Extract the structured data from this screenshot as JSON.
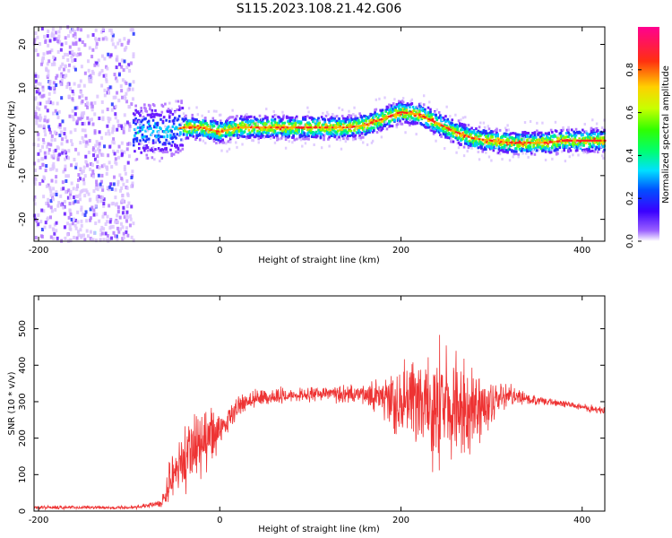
{
  "title": "S115.2023.108.21.42.G06",
  "chart_data": [
    {
      "type": "heatmap",
      "xlabel": "Height of straight line (km)",
      "ylabel": "Frequency (Hz)",
      "xlim": [
        -205,
        425
      ],
      "ylim": [
        -25,
        24
      ],
      "xticks": [
        -200,
        0,
        200,
        400
      ],
      "yticks": [
        -20,
        -10,
        0,
        10,
        20
      ],
      "grid": false,
      "colorbar": {
        "label": "Normalized spectral amplitude",
        "range": [
          0,
          1
        ],
        "ticks": [
          0.0,
          0.2,
          0.4,
          0.6,
          0.8
        ],
        "colormap": "rainbow"
      },
      "ridge": {
        "x": [
          -60,
          -40,
          -20,
          0,
          20,
          40,
          60,
          80,
          100,
          120,
          140,
          160,
          180,
          200,
          220,
          240,
          260,
          280,
          300,
          320,
          340,
          360,
          380,
          400,
          420
        ],
        "freq": [
          0,
          1,
          1,
          0,
          1,
          1,
          1,
          1,
          1,
          1,
          1,
          1.5,
          3,
          4.5,
          4,
          2,
          0,
          -1.5,
          -2,
          -2.5,
          -2.5,
          -2.5,
          -2,
          -2,
          -2
        ]
      },
      "noise_region_x": [
        -205,
        -95
      ]
    },
    {
      "type": "line",
      "xlabel": "Height of straight line (km)",
      "ylabel": "SNR (10 * v/v)",
      "xlim": [
        -205,
        425
      ],
      "ylim": [
        0,
        590
      ],
      "xticks": [
        -200,
        0,
        200,
        400
      ],
      "yticks": [
        0,
        100,
        200,
        300,
        400,
        500
      ],
      "grid": false,
      "color": "#ee3333",
      "envelope": {
        "x": [
          -205,
          -100,
          -65,
          -55,
          -40,
          -25,
          -10,
          0,
          20,
          40,
          80,
          120,
          160,
          180,
          200,
          220,
          240,
          260,
          280,
          300,
          320,
          340,
          380,
          425
        ],
        "y": [
          10,
          10,
          20,
          90,
          130,
          180,
          200,
          220,
          290,
          310,
          320,
          320,
          320,
          310,
          300,
          290,
          290,
          280,
          280,
          300,
          320,
          305,
          295,
          275
        ],
        "spread": [
          5,
          5,
          10,
          60,
          90,
          110,
          90,
          40,
          25,
          25,
          20,
          20,
          30,
          60,
          100,
          140,
          170,
          160,
          120,
          60,
          30,
          15,
          10,
          10
        ]
      }
    }
  ]
}
